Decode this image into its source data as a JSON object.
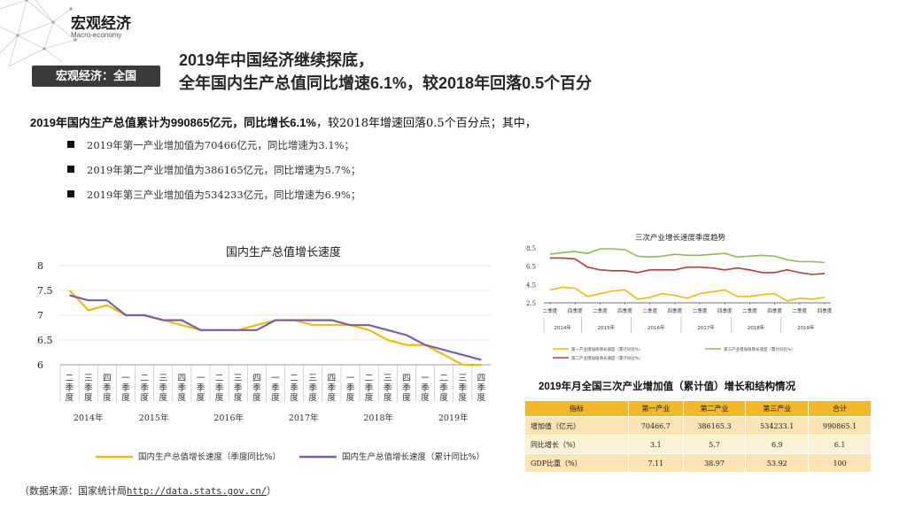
{
  "header": {
    "title": "宏观经济",
    "subtitle": "Macro-economy"
  },
  "section_badge": "宏观经济：全国",
  "headline": {
    "line1": "2019年中国经济继续探底，",
    "line2": "全年国内生产总值同比增速6.1%，较2018年回落0.5个百分"
  },
  "summary": {
    "bold": "2019年国内生产总值累计为990865亿元，同比增长6.1%",
    "rest": "，较2018年增速回落0.5个百分点；其中，"
  },
  "bullets": [
    "2019年第一产业增加值为70466亿元，同比增速为3.1%；",
    "2019年第二产业增加值为386165亿元，同比增速为5.7%；",
    "2019年第三产业增加值为534233亿元，同比增速为6.9%；"
  ],
  "source": {
    "prefix": "（数据来源：国家统计局",
    "url": "http://data.stats.gov.cn/",
    "suffix": "）"
  },
  "table": {
    "title": "2019年月全国三次产业增加值（累计值）增长和结构情况",
    "headers": [
      "指标",
      "第一产业",
      "第二产业",
      "第三产业",
      "合计"
    ],
    "rows": [
      [
        "增加值（亿元）",
        "70466.7",
        "386165.3",
        "534233.1",
        "990865.1"
      ],
      [
        "同比增长（%）",
        "3.1",
        "5.7",
        "6.9",
        "6.1"
      ],
      [
        "GDP比重（%）",
        "7.11",
        "38.97",
        "53.92",
        "100"
      ]
    ]
  },
  "colors": {
    "yellow": "#f2b90f",
    "purple": "#7b5fa6",
    "green": "#8dbb5a",
    "red": "#b83a3a",
    "header_band": "#f2b72a"
  },
  "chart_data": [
    {
      "type": "line",
      "title": "国内生产总值增长速度",
      "categories": [
        "二季度",
        "三季度",
        "四季度",
        "一季度",
        "二季度",
        "三季度",
        "四季度",
        "一季度",
        "二季度",
        "三季度",
        "四季度",
        "一季度",
        "二季度",
        "三季度",
        "四季度",
        "一季度",
        "二季度",
        "三季度",
        "四季度",
        "一季度",
        "二季度",
        "三季度",
        "四季度"
      ],
      "year_labels": [
        "2014年",
        "2015年",
        "2016年",
        "2017年",
        "2018年",
        "2019年"
      ],
      "series": [
        {
          "name": "国内生产总值增长速度（季度同比%）",
          "values": [
            7.5,
            7.1,
            7.2,
            7.0,
            7.0,
            6.9,
            6.8,
            6.7,
            6.7,
            6.7,
            6.8,
            6.9,
            6.9,
            6.8,
            6.8,
            6.8,
            6.7,
            6.5,
            6.4,
            6.4,
            6.2,
            6.0,
            6.0
          ]
        },
        {
          "name": "国内生产总值增长速度（累计同比%）",
          "values": [
            7.4,
            7.3,
            7.3,
            7.0,
            7.0,
            6.9,
            6.9,
            6.7,
            6.7,
            6.7,
            6.7,
            6.9,
            6.9,
            6.9,
            6.9,
            6.8,
            6.8,
            6.7,
            6.6,
            6.4,
            6.3,
            6.2,
            6.1
          ]
        }
      ],
      "y_ticks": [
        "8",
        "7.5",
        "7",
        "6.5",
        "6"
      ],
      "ylim": [
        6,
        8
      ]
    },
    {
      "type": "line",
      "title": "三次产业增长速度季度趋势",
      "categories": [
        "二季度",
        "三季度",
        "四季度",
        "一季度",
        "二季度",
        "三季度",
        "四季度",
        "一季度",
        "二季度",
        "三季度",
        "四季度",
        "一季度",
        "二季度",
        "三季度",
        "四季度",
        "一季度",
        "二季度",
        "三季度",
        "四季度",
        "一季度",
        "二季度",
        "三季度",
        "四季度"
      ],
      "x_tick_labels": [
        "二季度",
        "四季度",
        "二季度",
        "四季度",
        "二季度",
        "四季度",
        "二季度",
        "四季度",
        "二季度",
        "四季度",
        "二季度",
        "四季度"
      ],
      "year_labels": [
        "2014年",
        "2015年",
        "2016年",
        "2017年",
        "2018年",
        "2019年"
      ],
      "series": [
        {
          "name": "第一产业增加值增长速度（累计同比%）",
          "values": [
            3.9,
            4.2,
            4.1,
            3.2,
            3.5,
            3.8,
            3.9,
            2.9,
            3.1,
            3.5,
            3.3,
            3.0,
            3.5,
            3.7,
            3.9,
            3.2,
            3.2,
            3.4,
            3.5,
            2.7,
            3.0,
            2.9,
            3.1
          ]
        },
        {
          "name": "第二产业增加值增长速度（累计同比%）",
          "values": [
            7.4,
            7.4,
            7.3,
            6.4,
            6.1,
            6.0,
            6.0,
            5.8,
            6.1,
            6.1,
            6.1,
            6.4,
            6.4,
            6.3,
            6.1,
            6.3,
            6.1,
            5.8,
            5.8,
            6.1,
            5.8,
            5.6,
            5.7
          ]
        },
        {
          "name": "第三产业增加值增长速度（累计同比%）",
          "values": [
            7.8,
            8.0,
            8.1,
            7.9,
            8.4,
            8.4,
            8.3,
            7.6,
            7.5,
            7.6,
            7.8,
            7.7,
            7.7,
            7.8,
            7.9,
            7.5,
            7.6,
            7.7,
            7.6,
            7.2,
            7.0,
            7.0,
            6.9
          ]
        }
      ],
      "y_ticks": [
        "8.5",
        "6.5",
        "4.5",
        "2.5"
      ],
      "ylim": [
        2.5,
        8.5
      ]
    }
  ]
}
